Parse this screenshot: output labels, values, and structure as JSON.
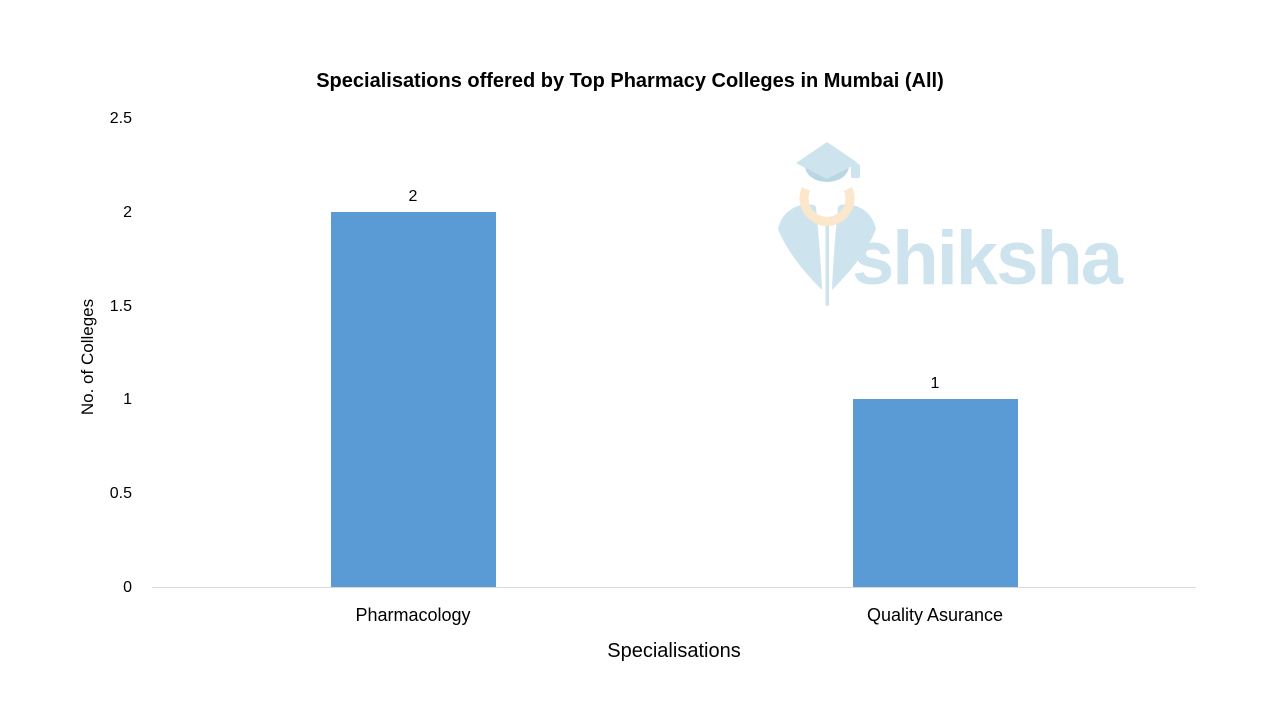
{
  "chart_data": {
    "type": "bar",
    "title": "Specialisations offered by Top Pharmacy Colleges in Mumbai (All)",
    "xlabel": "Specialisations",
    "ylabel": "No. of Colleges",
    "categories": [
      "Pharmacology",
      "Quality Asurance"
    ],
    "values": [
      2,
      1
    ],
    "data_labels": [
      "2",
      "1"
    ],
    "ylim": [
      0,
      2.5
    ],
    "yticks": [
      0,
      0.5,
      1,
      1.5,
      2,
      2.5
    ],
    "grid": false,
    "legend_position": "none",
    "colors": {
      "bar": "#5B9BD5",
      "axis_line": "#D9D9D9",
      "text": "#000000"
    }
  },
  "watermark": {
    "text": "shiksha",
    "colors": {
      "blue": "#CDE3ED",
      "band": "#B9D6E3",
      "peach": "#FBE7CB"
    }
  }
}
